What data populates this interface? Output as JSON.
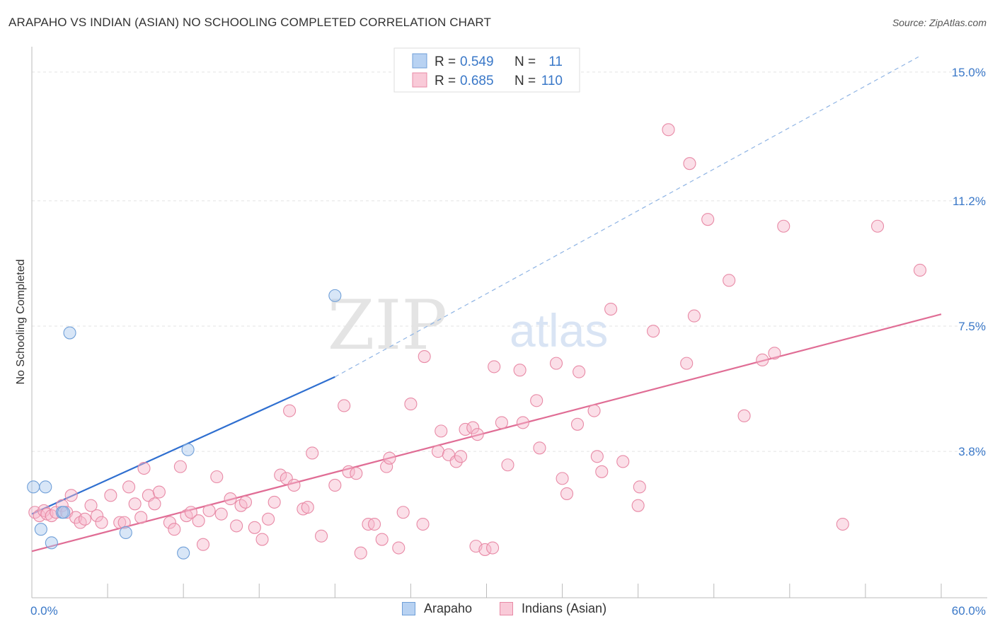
{
  "title": "ARAPAHO VS INDIAN (ASIAN) NO SCHOOLING COMPLETED CORRELATION CHART",
  "source": "Source: ZipAtlas.com",
  "watermark": {
    "zip": "ZIP",
    "atlas": "atlas"
  },
  "legend": {
    "r_label": "R =",
    "n_label": "N =",
    "rows": [
      {
        "r": "0.549",
        "n": "11",
        "color": "#a9c8ee",
        "stroke": "#6f9fd8"
      },
      {
        "r": "0.685",
        "n": "110",
        "color": "#f7b9cb",
        "stroke": "#e88aa6"
      }
    ]
  },
  "bottom_legend": [
    {
      "label": "Arapaho",
      "color": "#b8d2f2",
      "stroke": "#6f9fd8"
    },
    {
      "label": "Indians (Asian)",
      "color": "#f9cad8",
      "stroke": "#e88aa6"
    }
  ],
  "chart_data": {
    "type": "scatter",
    "ylabel": "No Schooling Completed",
    "xlabel": "",
    "xlim": [
      0,
      60
    ],
    "ylim": [
      0,
      15.5
    ],
    "x_tick_labels": [
      {
        "value": 0,
        "label": "0.0%"
      },
      {
        "value": 60,
        "label": "60.0%"
      }
    ],
    "y_tick_labels": [
      {
        "value": 3.8,
        "label": "3.8%"
      },
      {
        "value": 7.5,
        "label": "7.5%"
      },
      {
        "value": 11.2,
        "label": "11.2%"
      },
      {
        "value": 15.0,
        "label": "15.0%"
      }
    ],
    "grid": true,
    "series": [
      {
        "name": "Arapaho",
        "color": "#a9c8ee",
        "stroke": "#6f9fd8",
        "line_color": "#2f6fd0",
        "trend": {
          "x0": 0,
          "y0": 1.95,
          "x1": 20,
          "y1": 6.0,
          "dashed_to_x": 58.5,
          "dashed_to_y": 15.45
        },
        "points": [
          [
            0.1,
            2.75
          ],
          [
            0.6,
            1.5
          ],
          [
            0.9,
            2.75
          ],
          [
            1.3,
            1.1
          ],
          [
            2.0,
            2.0
          ],
          [
            2.1,
            2.0
          ],
          [
            2.5,
            7.3
          ],
          [
            6.2,
            1.4
          ],
          [
            10.0,
            0.8
          ],
          [
            10.3,
            3.85
          ],
          [
            20.0,
            8.4
          ]
        ]
      },
      {
        "name": "Indians (Asian)",
        "color": "#f7b9cb",
        "stroke": "#e88aa6",
        "line_color": "#e06d95",
        "trend": {
          "x0": 0,
          "y0": 0.85,
          "x1": 60,
          "y1": 7.85
        },
        "points": [
          [
            0.2,
            2.0
          ],
          [
            0.5,
            1.9
          ],
          [
            0.8,
            2.05
          ],
          [
            1.0,
            1.95
          ],
          [
            1.3,
            1.9
          ],
          [
            1.6,
            2.0
          ],
          [
            2.0,
            2.2
          ],
          [
            2.3,
            2.0
          ],
          [
            2.6,
            2.5
          ],
          [
            2.9,
            1.85
          ],
          [
            3.2,
            1.7
          ],
          [
            3.5,
            1.8
          ],
          [
            3.9,
            2.2
          ],
          [
            4.3,
            1.9
          ],
          [
            4.6,
            1.7
          ],
          [
            5.2,
            2.5
          ],
          [
            5.8,
            1.7
          ],
          [
            6.1,
            1.7
          ],
          [
            6.4,
            2.75
          ],
          [
            6.8,
            2.25
          ],
          [
            7.2,
            1.85
          ],
          [
            7.4,
            3.3
          ],
          [
            7.7,
            2.5
          ],
          [
            8.1,
            2.25
          ],
          [
            8.4,
            2.6
          ],
          [
            9.1,
            1.7
          ],
          [
            9.4,
            1.5
          ],
          [
            9.8,
            3.35
          ],
          [
            10.2,
            1.9
          ],
          [
            10.5,
            2.0
          ],
          [
            11.0,
            1.75
          ],
          [
            11.3,
            1.05
          ],
          [
            11.7,
            2.05
          ],
          [
            12.2,
            3.05
          ],
          [
            12.5,
            1.95
          ],
          [
            13.1,
            2.4
          ],
          [
            13.5,
            1.6
          ],
          [
            13.8,
            2.2
          ],
          [
            14.1,
            2.3
          ],
          [
            14.7,
            1.55
          ],
          [
            15.2,
            1.2
          ],
          [
            15.6,
            1.8
          ],
          [
            16.0,
            2.3
          ],
          [
            16.4,
            3.1
          ],
          [
            16.8,
            3.0
          ],
          [
            17.0,
            5.0
          ],
          [
            17.3,
            2.8
          ],
          [
            17.9,
            2.1
          ],
          [
            18.2,
            2.15
          ],
          [
            18.5,
            3.75
          ],
          [
            19.1,
            1.3
          ],
          [
            20.0,
            2.8
          ],
          [
            20.6,
            5.15
          ],
          [
            20.9,
            3.2
          ],
          [
            21.4,
            3.15
          ],
          [
            21.7,
            0.8
          ],
          [
            22.2,
            1.65
          ],
          [
            22.6,
            1.65
          ],
          [
            23.1,
            1.2
          ],
          [
            23.4,
            3.35
          ],
          [
            23.6,
            3.6
          ],
          [
            24.2,
            0.95
          ],
          [
            24.5,
            2.0
          ],
          [
            25.0,
            5.2
          ],
          [
            25.8,
            1.65
          ],
          [
            25.9,
            6.6
          ],
          [
            26.8,
            3.8
          ],
          [
            27.0,
            4.4
          ],
          [
            27.5,
            3.7
          ],
          [
            28.0,
            3.5
          ],
          [
            28.3,
            3.65
          ],
          [
            28.6,
            4.45
          ],
          [
            29.1,
            4.5
          ],
          [
            29.4,
            4.3
          ],
          [
            29.3,
            1.0
          ],
          [
            29.9,
            0.9
          ],
          [
            30.4,
            0.95
          ],
          [
            30.5,
            6.3
          ],
          [
            31.0,
            4.65
          ],
          [
            31.4,
            3.4
          ],
          [
            32.2,
            6.2
          ],
          [
            32.4,
            4.65
          ],
          [
            33.3,
            5.3
          ],
          [
            33.5,
            3.9
          ],
          [
            34.6,
            6.4
          ],
          [
            35.0,
            3.0
          ],
          [
            35.3,
            2.55
          ],
          [
            36.0,
            4.6
          ],
          [
            36.1,
            6.15
          ],
          [
            37.1,
            5.0
          ],
          [
            37.3,
            3.65
          ],
          [
            37.6,
            3.2
          ],
          [
            38.2,
            8.0
          ],
          [
            39.0,
            3.5
          ],
          [
            40.0,
            2.2
          ],
          [
            40.1,
            2.75
          ],
          [
            41.0,
            7.35
          ],
          [
            42.0,
            13.3
          ],
          [
            43.2,
            6.4
          ],
          [
            43.7,
            7.8
          ],
          [
            43.4,
            12.3
          ],
          [
            44.6,
            10.65
          ],
          [
            46.0,
            8.85
          ],
          [
            47.0,
            4.85
          ],
          [
            48.2,
            6.5
          ],
          [
            49.0,
            6.7
          ],
          [
            49.6,
            10.45
          ],
          [
            53.5,
            1.65
          ],
          [
            55.8,
            10.45
          ],
          [
            58.6,
            9.15
          ]
        ]
      }
    ]
  }
}
